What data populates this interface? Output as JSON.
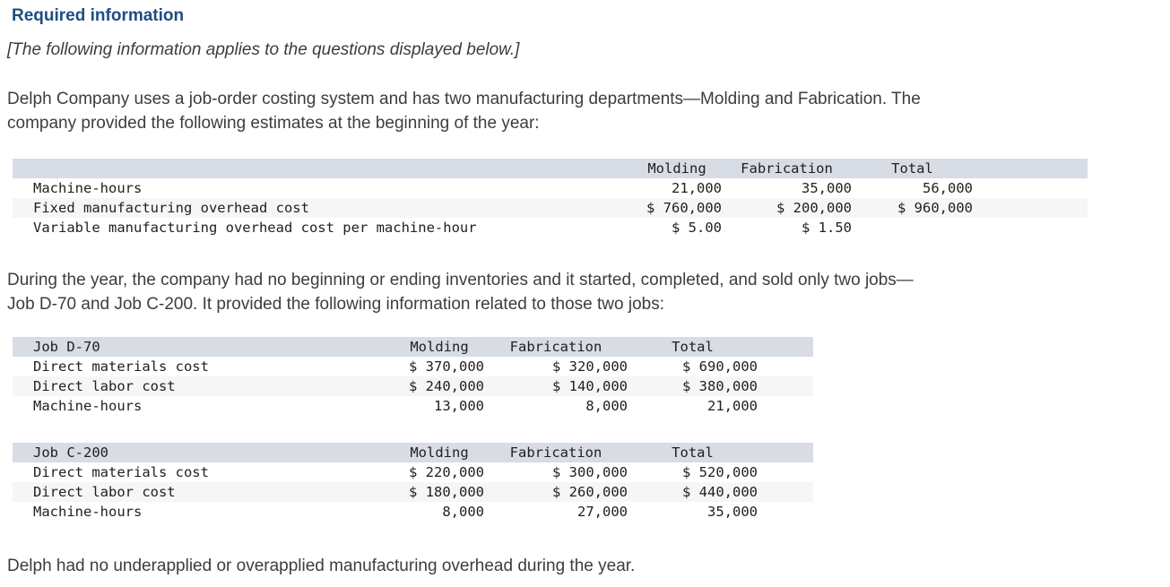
{
  "header": {
    "title": "Required information",
    "notice": "[The following information applies to the questions displayed below.]"
  },
  "paragraphs": {
    "intro": {
      "line1": "Delph Company uses a job-order costing system and has two manufacturing departments—Molding and Fabrication. The",
      "line2": "company provided the following estimates at the beginning of the year:"
    },
    "jobs": {
      "line1": "During the year, the company had no beginning or ending inventories and it started, completed, and sold only two jobs—",
      "line2": "Job D-70 and Job C-200. It provided the following information related to those two jobs:"
    },
    "closing": "Delph had no underapplied or overapplied manufacturing overhead during the year."
  },
  "estimates_table": {
    "row_header": "",
    "columns": {
      "molding": "Molding",
      "fabrication": "Fabrication",
      "total": "Total"
    },
    "rows": [
      {
        "label": "Machine-hours",
        "molding": "21,000",
        "fabrication": "35,000",
        "total": "56,000"
      },
      {
        "label": "Fixed manufacturing overhead cost",
        "molding": "$ 760,000",
        "fabrication": "$ 200,000",
        "total": "$ 960,000"
      },
      {
        "label": "Variable manufacturing overhead cost per machine-hour",
        "molding": "$ 5.00",
        "fabrication": "$ 1.50",
        "total": ""
      }
    ]
  },
  "job_d70_table": {
    "row_header": "Job D-70",
    "columns": {
      "molding": "Molding",
      "fabrication": "Fabrication",
      "total": "Total"
    },
    "rows": [
      {
        "label": "Direct materials cost",
        "molding": "$ 370,000",
        "fabrication": "$ 320,000",
        "total": "$ 690,000"
      },
      {
        "label": "Direct labor cost",
        "molding": "$ 240,000",
        "fabrication": "$ 140,000",
        "total": "$ 380,000"
      },
      {
        "label": "Machine-hours",
        "molding": "13,000",
        "fabrication": "8,000",
        "total": "21,000"
      }
    ]
  },
  "job_c200_table": {
    "row_header": "Job C-200",
    "columns": {
      "molding": "Molding",
      "fabrication": "Fabrication",
      "total": "Total"
    },
    "rows": [
      {
        "label": "Direct materials cost",
        "molding": "$ 220,000",
        "fabrication": "$ 300,000",
        "total": "$ 520,000"
      },
      {
        "label": "Direct labor cost",
        "molding": "$ 180,000",
        "fabrication": "$ 260,000",
        "total": "$ 440,000"
      },
      {
        "label": "Machine-hours",
        "molding": "8,000",
        "fabrication": "27,000",
        "total": "35,000"
      }
    ]
  },
  "colors": {
    "title_blue": "#1e4d82",
    "table_header_bg": "#d7dce5",
    "table_alt_row_bg": "#f6f6f6"
  }
}
